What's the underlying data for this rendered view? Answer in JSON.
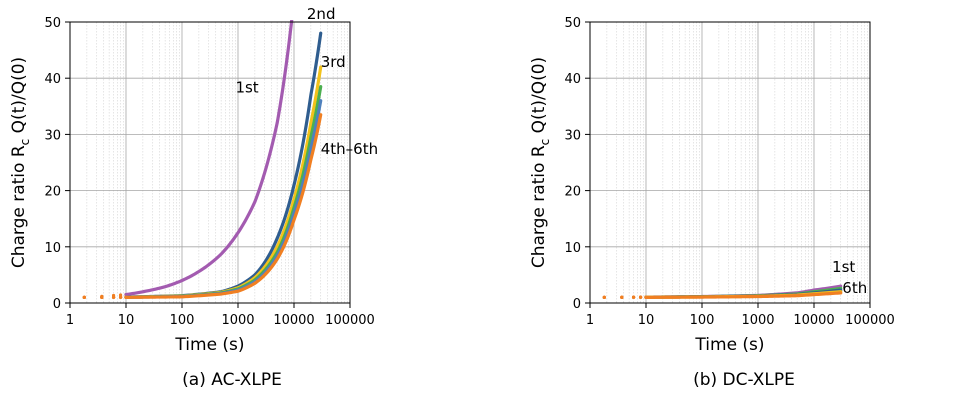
{
  "colors": {
    "c1st": "#a35bb0",
    "c2nd": "#2f5d8f",
    "c3rd": "#f2c21b",
    "c4th": "#4caf50",
    "c5th": "#4f81bd",
    "c6th": "#f07f22",
    "grid_major": "#a6a6a6",
    "grid_minor": "#d4d4d4"
  },
  "chart_data": [
    {
      "type": "line",
      "caption": "(a) AC-XLPE",
      "xlabel": "Time (s)",
      "ylabel_main": "Charge ratio R",
      "ylabel_sub": "c",
      "ylabel_tail": " Q(t)/Q(0)",
      "xscale": "log",
      "xlim": [
        1,
        100000
      ],
      "ylim": [
        0,
        50
      ],
      "xticks": [
        1,
        10,
        100,
        1000,
        10000,
        100000
      ],
      "xtick_labels": [
        "1",
        "10",
        "100",
        "1000",
        "10000",
        "100000"
      ],
      "yticks": [
        0,
        10,
        20,
        30,
        40,
        50
      ],
      "ytick_labels": [
        "0",
        "10",
        "20",
        "30",
        "40",
        "50"
      ],
      "grid": true,
      "series": [
        {
          "key": "s1",
          "color_key": "c1st",
          "x": [
            1.8,
            10,
            20,
            50,
            100,
            200,
            500,
            1000,
            2000,
            5000,
            10000
          ],
          "y": [
            1.0,
            1.5,
            2.0,
            2.9,
            4.0,
            5.6,
            8.7,
            12.5,
            18.0,
            32.0,
            54.0
          ]
        },
        {
          "key": "s2",
          "color_key": "c2nd",
          "x": [
            1.8,
            10,
            100,
            500,
            1000,
            2000,
            5000,
            10000,
            20000,
            30000
          ],
          "y": [
            1.0,
            1.05,
            1.3,
            2.0,
            3.0,
            5.0,
            11.5,
            21.0,
            37.0,
            48.0
          ]
        },
        {
          "key": "s3",
          "color_key": "c3rd",
          "x": [
            1.8,
            10,
            100,
            500,
            1000,
            2000,
            5000,
            10000,
            20000,
            30000
          ],
          "y": [
            1.0,
            1.04,
            1.25,
            1.9,
            2.7,
            4.5,
            10.0,
            18.5,
            32.0,
            42.0
          ]
        },
        {
          "key": "s4",
          "color_key": "c4th",
          "x": [
            1.8,
            10,
            100,
            500,
            1000,
            2000,
            5000,
            10000,
            20000,
            30000
          ],
          "y": [
            1.0,
            1.03,
            1.2,
            1.8,
            2.5,
            4.1,
            9.0,
            17.0,
            29.5,
            38.5
          ]
        },
        {
          "key": "s5",
          "color_key": "c5th",
          "x": [
            1.8,
            10,
            100,
            500,
            1000,
            2000,
            5000,
            10000,
            20000,
            30000
          ],
          "y": [
            1.0,
            1.02,
            1.15,
            1.7,
            2.3,
            3.8,
            8.4,
            16.0,
            27.5,
            36.0
          ]
        },
        {
          "key": "s6",
          "color_key": "c6th",
          "x": [
            1.8,
            10,
            100,
            500,
            1000,
            2000,
            5000,
            10000,
            20000,
            30000
          ],
          "y": [
            1.0,
            1.0,
            1.1,
            1.6,
            2.1,
            3.5,
            7.8,
            14.8,
            25.5,
            33.5
          ]
        }
      ],
      "annotations": [
        {
          "text": "1st",
          "at_x": 900,
          "at_y": 37.5
        },
        {
          "text": "2nd",
          "at_x": 17000,
          "at_y": 50.5
        },
        {
          "text": "3rd",
          "at_x": 30000,
          "at_y": 42.0
        },
        {
          "text": "4th–6th",
          "at_x": 30000,
          "at_y": 26.5
        }
      ]
    },
    {
      "type": "line",
      "caption": "(b) DC-XLPE",
      "xlabel": "Time (s)",
      "ylabel_main": "Charge ratio R",
      "ylabel_sub": "c",
      "ylabel_tail": " Q(t)/Q(0)",
      "xscale": "log",
      "xlim": [
        1,
        100000
      ],
      "ylim": [
        0,
        50
      ],
      "xticks": [
        1,
        10,
        100,
        1000,
        10000,
        100000
      ],
      "xtick_labels": [
        "1",
        "10",
        "100",
        "1000",
        "10000",
        "100000"
      ],
      "yticks": [
        0,
        10,
        20,
        30,
        40,
        50
      ],
      "ytick_labels": [
        "0",
        "10",
        "20",
        "30",
        "40",
        "50"
      ],
      "grid": true,
      "series": [
        {
          "key": "s1",
          "color_key": "c1st",
          "x": [
            1.8,
            10,
            100,
            1000,
            5000,
            10000,
            30000
          ],
          "y": [
            1.0,
            1.05,
            1.15,
            1.35,
            1.8,
            2.3,
            3.0
          ]
        },
        {
          "key": "s2",
          "color_key": "c4th",
          "x": [
            1.8,
            10,
            100,
            1000,
            5000,
            10000,
            30000
          ],
          "y": [
            1.0,
            1.04,
            1.12,
            1.3,
            1.6,
            2.0,
            2.6
          ]
        },
        {
          "key": "s3",
          "color_key": "c2nd",
          "x": [
            1.8,
            10,
            100,
            1000,
            5000,
            10000,
            30000
          ],
          "y": [
            1.0,
            1.03,
            1.1,
            1.25,
            1.5,
            1.8,
            2.3
          ]
        },
        {
          "key": "s4",
          "color_key": "c3rd",
          "x": [
            1.8,
            10,
            100,
            1000,
            5000,
            10000,
            30000
          ],
          "y": [
            1.0,
            1.02,
            1.08,
            1.2,
            1.4,
            1.65,
            2.0
          ]
        },
        {
          "key": "s5",
          "color_key": "c6th",
          "x": [
            1.8,
            10,
            100,
            1000,
            5000,
            10000,
            30000
          ],
          "y": [
            1.0,
            1.0,
            1.05,
            1.15,
            1.3,
            1.5,
            1.8
          ]
        }
      ],
      "annotations": [
        {
          "text": "1st",
          "at_x": 21000,
          "at_y": 5.5
        },
        {
          "text": "6th",
          "at_x": 32000,
          "at_y": 1.8
        }
      ]
    }
  ]
}
